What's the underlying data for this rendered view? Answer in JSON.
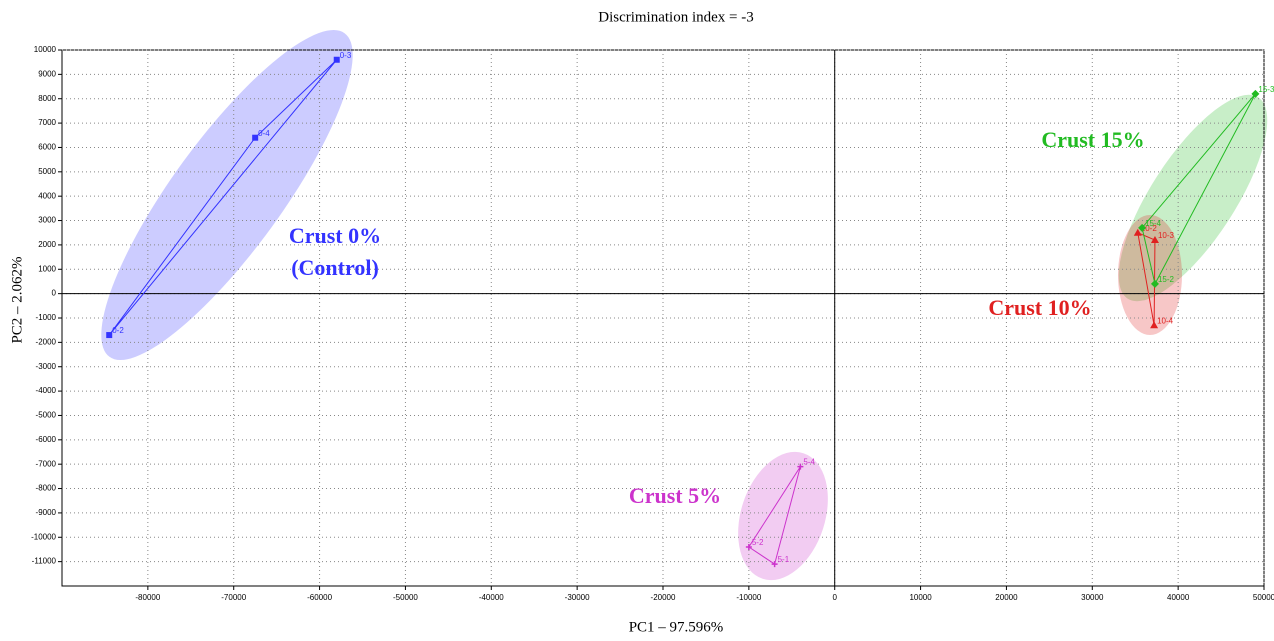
{
  "chart_data": {
    "type": "scatter",
    "title": "Discrimination index = -3",
    "x_label": "PC1 – 97.596%",
    "y_label": "PC2 – 2.062%",
    "xlim": [
      -90000,
      50000
    ],
    "ylim": [
      -12000,
      10000
    ],
    "xticks": [
      -80000,
      -70000,
      -60000,
      -50000,
      -40000,
      -30000,
      -20000,
      -10000,
      0,
      10000,
      20000,
      30000,
      40000,
      50000
    ],
    "yticks": [
      -11000,
      -10000,
      -9000,
      -8000,
      -7000,
      -6000,
      -5000,
      -4000,
      -3000,
      -2000,
      -1000,
      0,
      1000,
      2000,
      3000,
      4000,
      5000,
      6000,
      7000,
      8000,
      9000,
      10000
    ],
    "grid": true,
    "series": [
      {
        "name": "Crust 0%",
        "color": "#3333ff",
        "marker": "square",
        "point_labels": [
          "0-3",
          "0-4",
          "0-2"
        ],
        "x": [
          -58000,
          -67500,
          -84500
        ],
        "values": [
          9600,
          6400,
          -1700
        ]
      },
      {
        "name": "Crust 5%",
        "color": "#cc33cc",
        "marker": "plus",
        "point_labels": [
          "5-4",
          "5-2",
          "5-1"
        ],
        "x": [
          -4000,
          -10000,
          -7000
        ],
        "values": [
          -7100,
          -10400,
          -11100
        ]
      },
      {
        "name": "Crust 10%",
        "color": "#e02020",
        "marker": "triangle",
        "point_labels": [
          "10-2",
          "10-3",
          "10-4"
        ],
        "x": [
          35300,
          37300,
          37200
        ],
        "values": [
          2500,
          2200,
          -1300
        ]
      },
      {
        "name": "Crust 15%",
        "color": "#22bb22",
        "marker": "diamond",
        "point_labels": [
          "15-3",
          "15-4",
          "15-2"
        ],
        "x": [
          49000,
          35800,
          37300
        ],
        "values": [
          8200,
          2700,
          400
        ]
      }
    ],
    "annotations": [
      "Crust 0%",
      "(Control)",
      "Crust 5%",
      "Crust 10%",
      "Crust 15%"
    ]
  }
}
